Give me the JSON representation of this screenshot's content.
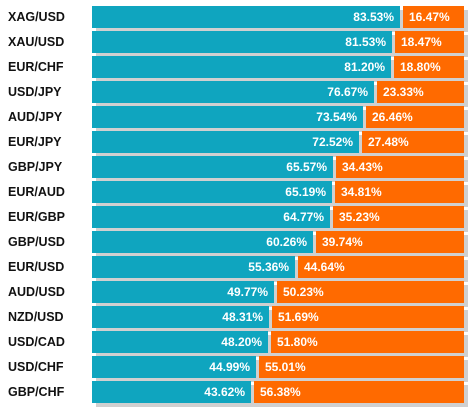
{
  "chart_data": {
    "type": "bar",
    "stacked": true,
    "orientation": "horizontal",
    "categories": [
      "XAG/USD",
      "XAU/USD",
      "EUR/CHF",
      "USD/JPY",
      "AUD/JPY",
      "EUR/JPY",
      "GBP/JPY",
      "EUR/AUD",
      "EUR/GBP",
      "GBP/USD",
      "EUR/USD",
      "AUD/USD",
      "NZD/USD",
      "USD/CAD",
      "USD/CHF",
      "GBP/CHF"
    ],
    "series": [
      {
        "color": "#0fa5bf",
        "values": [
          83.53,
          81.53,
          81.2,
          76.67,
          73.54,
          72.52,
          65.57,
          65.19,
          64.77,
          60.26,
          55.36,
          49.77,
          48.31,
          48.2,
          44.99,
          43.62
        ],
        "labels": [
          "83.53%",
          "81.53%",
          "81.20%",
          "76.67%",
          "73.54%",
          "72.52%",
          "65.57%",
          "65.19%",
          "64.77%",
          "60.26%",
          "55.36%",
          "49.77%",
          "48.31%",
          "48.20%",
          "44.99%",
          "43.62%"
        ]
      },
      {
        "color": "#ff6a00",
        "values": [
          16.47,
          18.47,
          18.8,
          23.33,
          26.46,
          27.48,
          34.43,
          34.81,
          35.23,
          39.74,
          44.64,
          50.23,
          51.69,
          51.8,
          55.01,
          56.38
        ],
        "labels": [
          "16.47%",
          "18.47%",
          "18.80%",
          "23.33%",
          "26.46%",
          "27.48%",
          "34.43%",
          "34.81%",
          "35.23%",
          "39.74%",
          "44.64%",
          "50.23%",
          "51.69%",
          "51.80%",
          "55.01%",
          "56.38%"
        ]
      }
    ],
    "xlim": [
      0,
      100
    ]
  }
}
